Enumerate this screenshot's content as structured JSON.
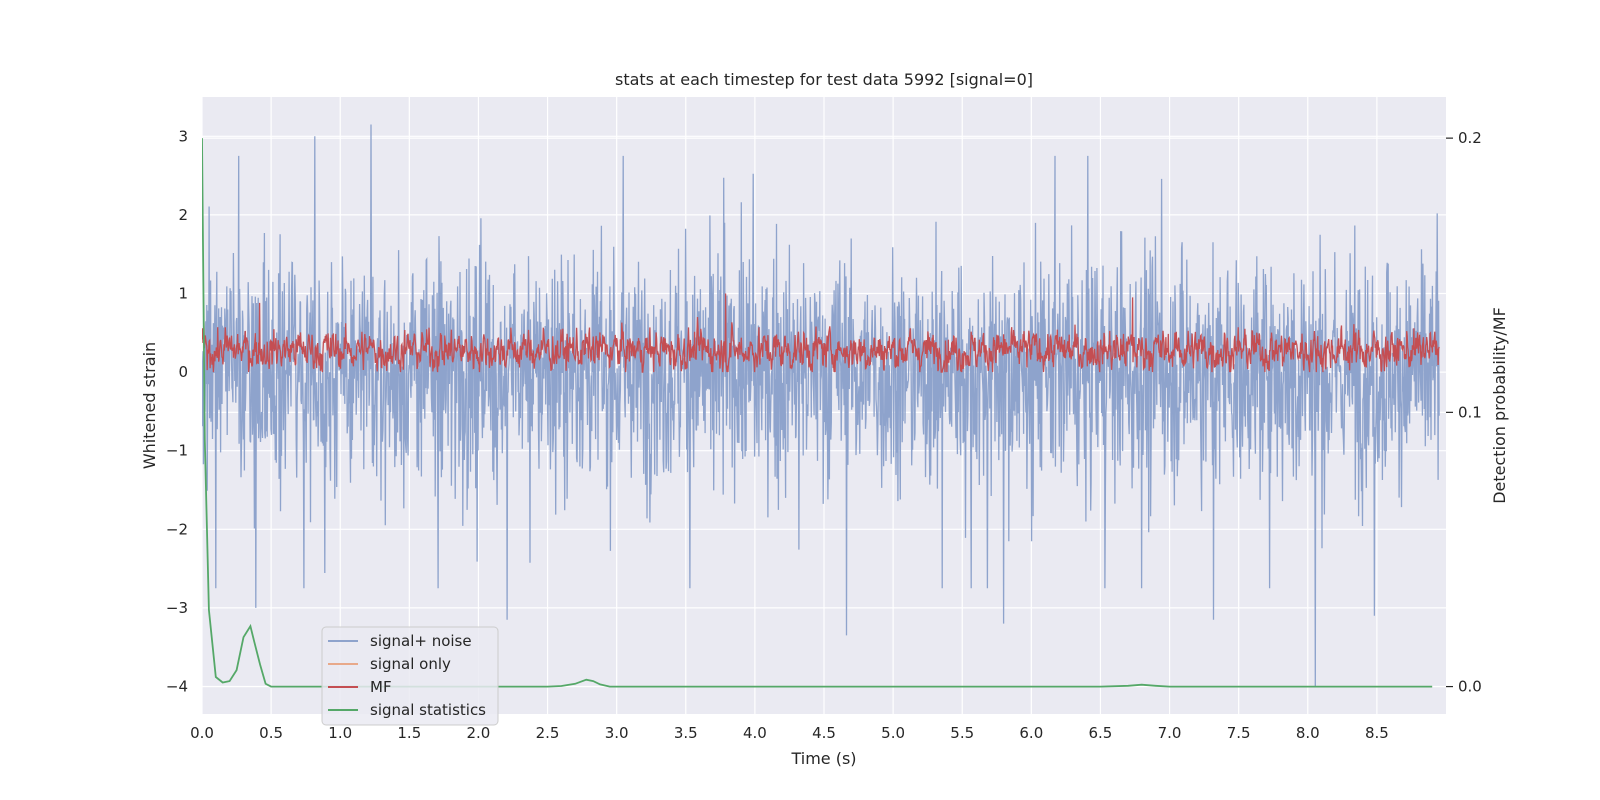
{
  "chart_data": {
    "type": "line",
    "title": "stats at each timestep for test data 5992 [signal=0]",
    "xlabel": "Time (s)",
    "ylabel": "Whitened strain",
    "y2label": "Detection probability/MF",
    "xlim": [
      0.0,
      9.0
    ],
    "ylim": [
      -4.35,
      3.5
    ],
    "y2lim": [
      -0.01,
      0.215
    ],
    "xticks": [
      0.0,
      0.5,
      1.0,
      1.5,
      2.0,
      2.5,
      3.0,
      3.5,
      4.0,
      4.5,
      5.0,
      5.5,
      6.0,
      6.5,
      7.0,
      7.5,
      8.0,
      8.5
    ],
    "xtick_labels": [
      "0.0",
      "0.5",
      "1.0",
      "1.5",
      "2.0",
      "2.5",
      "3.0",
      "3.5",
      "4.0",
      "4.5",
      "5.0",
      "5.5",
      "6.0",
      "6.5",
      "7.0",
      "7.5",
      "8.0",
      "8.5"
    ],
    "yticks": [
      -4,
      -3,
      -2,
      -1,
      0,
      1,
      2,
      3
    ],
    "ytick_labels": [
      "−4",
      "−3",
      "−2",
      "−1",
      "0",
      "1",
      "2",
      "3"
    ],
    "y2ticks": [
      0.0,
      0.1,
      0.2
    ],
    "y2tick_labels": [
      "0.0",
      "0.1",
      "0.2"
    ],
    "grid": true,
    "legend_position": "lower-left",
    "series": [
      {
        "name": "signal+ noise",
        "color": "#8ea3cc",
        "axis": "left",
        "description": "noise-like whitened strain, roughly within -2.5 to 2.5",
        "range": [
          -4.0,
          3.15
        ],
        "extremes": [
          {
            "x": 1.23,
            "y": 3.15
          },
          {
            "x": 0.82,
            "y": 3.0
          },
          {
            "x": 0.39,
            "y": -3.0
          },
          {
            "x": 2.22,
            "y": -3.15
          },
          {
            "x": 4.69,
            "y": -3.35
          },
          {
            "x": 5.83,
            "y": -3.2
          },
          {
            "x": 7.36,
            "y": -3.15
          },
          {
            "x": 8.1,
            "y": -4.0
          },
          {
            "x": 8.53,
            "y": -3.1
          }
        ]
      },
      {
        "name": "signal only",
        "color": "#e8a98a",
        "axis": "left",
        "values": []
      },
      {
        "name": "MF",
        "color": "#c44e52",
        "axis": "left",
        "description": "matched filter output, roughly within 0.0 to 0.8",
        "range": [
          0.0,
          1.0
        ],
        "extremes": [
          {
            "x": 3.81,
            "y": 1.0
          },
          {
            "x": 0.42,
            "y": 0.88
          },
          {
            "x": 6.77,
            "y": 0.95
          }
        ]
      },
      {
        "name": "signal statistics",
        "color": "#55a868",
        "axis": "right",
        "x": [
          0.0,
          0.02,
          0.05,
          0.1,
          0.15,
          0.2,
          0.25,
          0.3,
          0.35,
          0.38,
          0.42,
          0.46,
          0.5,
          0.55,
          1.0,
          2.0,
          2.5,
          2.6,
          2.7,
          2.78,
          2.83,
          2.88,
          2.95,
          3.0,
          4.0,
          5.0,
          6.0,
          6.5,
          6.7,
          6.8,
          6.9,
          7.0,
          8.0,
          8.5,
          8.9
        ],
        "y": [
          0.2,
          0.09,
          0.028,
          0.0035,
          0.0015,
          0.002,
          0.006,
          0.018,
          0.022,
          0.016,
          0.008,
          0.001,
          0.0,
          0.0,
          0.0,
          0.0,
          0.0,
          0.0002,
          0.001,
          0.0025,
          0.002,
          0.0008,
          0.0,
          0.0,
          0.0,
          0.0,
          0.0,
          0.0,
          0.0003,
          0.0007,
          0.0003,
          0.0,
          0.0,
          0.0,
          0.0
        ]
      }
    ]
  },
  "colors": {
    "plot_background": "#eaeaf2",
    "grid": "#ffffff",
    "signal_noise": "#8ea3cc",
    "signal_only": "#e8a98a",
    "mf": "#c44e52",
    "signal_statistics": "#55a868"
  }
}
